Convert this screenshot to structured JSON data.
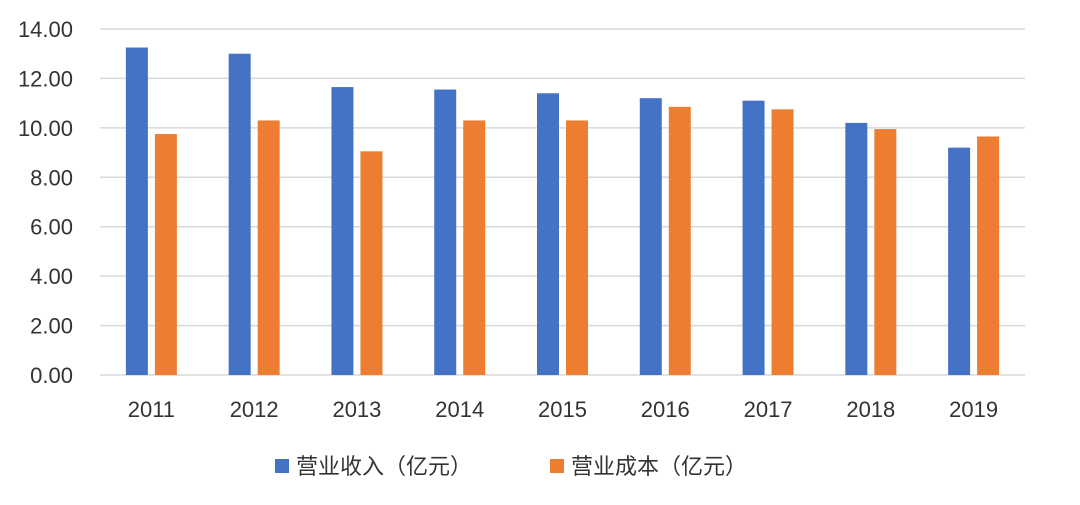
{
  "chart_data": {
    "type": "bar",
    "categories": [
      "2011",
      "2012",
      "2013",
      "2014",
      "2015",
      "2016",
      "2017",
      "2018",
      "2019"
    ],
    "series": [
      {
        "name": "营业收入（亿元）",
        "color": "#4472C4",
        "values": [
          13.25,
          13.0,
          11.65,
          11.55,
          11.4,
          11.2,
          11.1,
          10.2,
          9.2
        ]
      },
      {
        "name": "营业成本（亿元）",
        "color": "#ED7D31",
        "values": [
          9.75,
          10.3,
          9.05,
          10.3,
          10.3,
          10.85,
          10.75,
          9.95,
          9.65
        ]
      }
    ],
    "yticks": [
      "0.00",
      "2.00",
      "4.00",
      "6.00",
      "8.00",
      "10.00",
      "12.00",
      "14.00"
    ],
    "ylim": [
      0,
      14
    ],
    "grid": true,
    "gridColor": "#d9d9d9",
    "legend": "bottom"
  }
}
